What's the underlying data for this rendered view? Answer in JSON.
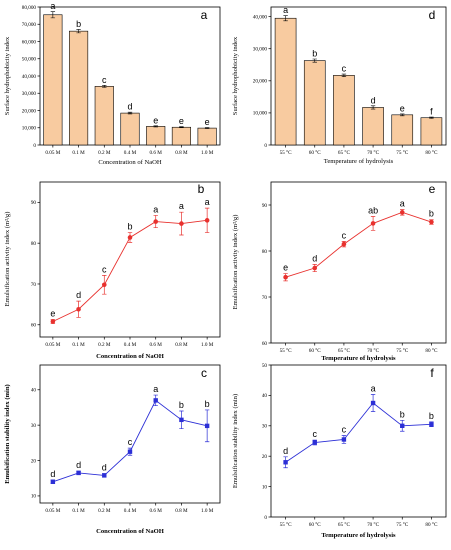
{
  "chart_data": [
    {
      "id": "a",
      "panel_label": "a",
      "type": "bar",
      "categories": [
        "0.05 M",
        "0.1 M",
        "0.2 M",
        "0.4 M",
        "0.6 M",
        "0.8 M",
        "1.0 M"
      ],
      "values": [
        75500,
        66000,
        34000,
        18500,
        10800,
        10300,
        9800
      ],
      "errors": [
        1800,
        1000,
        600,
        500,
        300,
        300,
        300
      ],
      "letters": [
        "a",
        "b",
        "c",
        "d",
        "e",
        "e",
        "e"
      ],
      "yticks": [
        0,
        10000,
        20000,
        30000,
        40000,
        50000,
        60000,
        70000,
        80000
      ],
      "ytick_labels": [
        "0",
        "10,000",
        "20,000",
        "30,000",
        "40,000",
        "50,000",
        "60,000",
        "70,000",
        "80,000"
      ],
      "ylim": [
        0,
        80000
      ],
      "xlabel": "Concentration of NaOH",
      "ylabel": "Surface hydrophobicity index",
      "bar_color": "#f8cba0",
      "bar_edge": "#000000"
    },
    {
      "id": "d",
      "panel_label": "d",
      "type": "bar",
      "categories": [
        "55 °C",
        "60 °C",
        "65 °C",
        "70 °C",
        "75 °C",
        "80 °C"
      ],
      "values": [
        39500,
        26300,
        21700,
        11700,
        9400,
        8500
      ],
      "errors": [
        800,
        500,
        400,
        500,
        300,
        200
      ],
      "letters": [
        "a",
        "b",
        "c",
        "d",
        "e",
        "f"
      ],
      "yticks": [
        0,
        10000,
        20000,
        30000,
        40000
      ],
      "ytick_labels": [
        "0",
        "10,000",
        "20,000",
        "30,000",
        "40,000"
      ],
      "ylim": [
        0,
        43000
      ],
      "xlabel": "Temperature of hydrolysis",
      "ylabel": "Surface hydrophobicity index",
      "bar_color": "#f8cba0",
      "bar_edge": "#000000"
    },
    {
      "id": "b",
      "panel_label": "b",
      "type": "line",
      "categories": [
        "0.05 M",
        "0.1 M",
        "0.2 M",
        "0.4 M",
        "0.6 M",
        "0.8 M",
        "1.0 M"
      ],
      "values": [
        60.8,
        63.8,
        69.8,
        81.4,
        85.3,
        84.8,
        85.6
      ],
      "errors": [
        0.5,
        2.0,
        2.3,
        1.2,
        1.5,
        2.8,
        3.0
      ],
      "letters": [
        "e",
        "d",
        "c",
        "b",
        "a",
        "a",
        "a"
      ],
      "yticks": [
        60,
        70,
        80,
        90
      ],
      "ytick_labels": [
        "60",
        "70",
        "80",
        "90"
      ],
      "ylim": [
        57,
        95
      ],
      "xlabel": "Concentration of NaOH",
      "ylabel": "Emulsification activity index (m²/g)",
      "color": "#e8312e",
      "marker": "circle"
    },
    {
      "id": "e",
      "panel_label": "e",
      "type": "line",
      "categories": [
        "55 °C",
        "60 °C",
        "65 °C",
        "70 °C",
        "75 °C",
        "80 °C"
      ],
      "values": [
        74.3,
        76.3,
        81.5,
        86.0,
        88.4,
        86.3
      ],
      "errors": [
        0.8,
        0.8,
        0.6,
        1.5,
        0.6,
        0.5
      ],
      "letters": [
        "e",
        "d",
        "c",
        "ab",
        "a",
        "b"
      ],
      "yticks": [
        60,
        70,
        80,
        90
      ],
      "ytick_labels": [
        "60",
        "70",
        "80",
        "90"
      ],
      "ylim": [
        60,
        95
      ],
      "xlabel": "Temperature of hydrolysis",
      "ylabel": "Emulsification activity index (m²/g)",
      "color": "#e8312e",
      "marker": "circle"
    },
    {
      "id": "c",
      "panel_label": "c",
      "type": "line",
      "categories": [
        "0.05 M",
        "0.1 M",
        "0.2 M",
        "0.4 M",
        "0.6 M",
        "0.8 M",
        "1.0 M"
      ],
      "values": [
        14.0,
        16.5,
        15.8,
        22.5,
        37.0,
        31.5,
        29.8
      ],
      "errors": [
        0.5,
        0.5,
        0.5,
        1.0,
        1.5,
        2.5,
        4.5
      ],
      "letters": [
        "d",
        "d",
        "d",
        "c",
        "a",
        "b",
        "b"
      ],
      "yticks": [
        10,
        20,
        30,
        40
      ],
      "ytick_labels": [
        "10",
        "20",
        "30",
        "40"
      ],
      "ylim": [
        8,
        47
      ],
      "xlabel": "Concentration of NaOH",
      "ylabel": "Emulsification stability index (min)",
      "color": "#2c2fd6",
      "marker": "square"
    },
    {
      "id": "f",
      "panel_label": "f",
      "type": "line",
      "categories": [
        "55 °C",
        "60 °C",
        "65 °C",
        "70 °C",
        "75 °C",
        "80 °C"
      ],
      "values": [
        18.0,
        24.5,
        25.5,
        37.5,
        30.0,
        30.5
      ],
      "errors": [
        1.8,
        0.8,
        1.3,
        2.8,
        1.8,
        0.8
      ],
      "letters": [
        "d",
        "c",
        "c",
        "a",
        "b",
        "b"
      ],
      "yticks": [
        0,
        10,
        20,
        30,
        40,
        50
      ],
      "ytick_labels": [
        "0",
        "10",
        "20",
        "30",
        "40",
        "50"
      ],
      "ylim": [
        0,
        50
      ],
      "xlabel": "Temperature of hydrolysis",
      "ylabel": "Emulsification stability index (min)",
      "color": "#2c2fd6",
      "marker": "square"
    }
  ]
}
